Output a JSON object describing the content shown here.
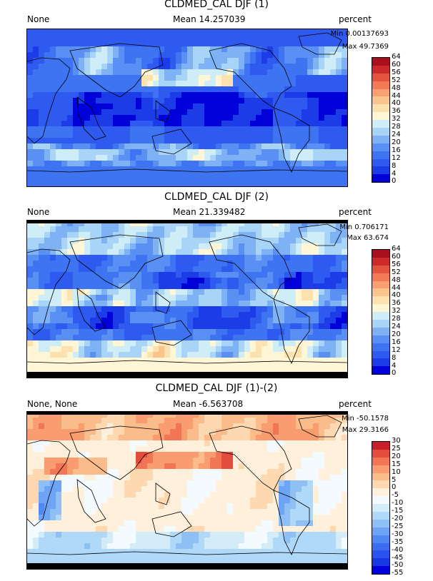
{
  "chart_data": [
    {
      "type": "heatmap",
      "title": "CLDMED_CAL DJF (1)",
      "left_label": "None",
      "mean_label": "Mean 14.257039",
      "units": "percent",
      "min_label": "Min 0.00137693",
      "max_label": "Max 49.7369",
      "colorbar_ticks": [
        "64",
        "60",
        "56",
        "52",
        "48",
        "44",
        "40",
        "36",
        "32",
        "28",
        "24",
        "20",
        "16",
        "12",
        "8",
        "4",
        "0"
      ],
      "colors": [
        "#0000d8",
        "#1c3ce8",
        "#2f5af0",
        "#3e74f2",
        "#5a90f4",
        "#7fb2f5",
        "#a8d4f7",
        "#cfedf7",
        "#fff6d6",
        "#fde2b0",
        "#fbc48c",
        "#f9a070",
        "#f27a55",
        "#e4533e",
        "#cc2a2a",
        "#a8101e"
      ],
      "projection": "cylindrical equidistant",
      "lat_range": [
        -90,
        90
      ],
      "lon_range": [
        0,
        360
      ],
      "value_range": [
        0,
        64
      ]
    },
    {
      "type": "heatmap",
      "title": "CLDMED_CAL DJF (2)",
      "left_label": "None",
      "mean_label": "Mean 21.339482",
      "units": "percent",
      "min_label": "Min 0.706171",
      "max_label": "Max 63.674",
      "colorbar_ticks": [
        "64",
        "60",
        "56",
        "52",
        "48",
        "44",
        "40",
        "36",
        "32",
        "28",
        "24",
        "20",
        "16",
        "12",
        "8",
        "4",
        "0"
      ],
      "colors": [
        "#0000d8",
        "#1c3ce8",
        "#2f5af0",
        "#3e74f2",
        "#5a90f4",
        "#7fb2f5",
        "#a8d4f7",
        "#cfedf7",
        "#fff6d6",
        "#fde2b0",
        "#fbc48c",
        "#f9a070",
        "#f27a55",
        "#e4533e",
        "#cc2a2a",
        "#a8101e"
      ],
      "projection": "cylindrical equidistant",
      "lat_range": [
        -90,
        90
      ],
      "lon_range": [
        0,
        360
      ],
      "value_range": [
        0,
        64
      ]
    },
    {
      "type": "heatmap",
      "title": "CLDMED_CAL DJF (1)-(2)",
      "left_label": "None, None",
      "mean_label": "Mean -6.563708",
      "units": "percent",
      "min_label": "Min -50.1578",
      "max_label": "Max 29.3166",
      "colorbar_ticks": [
        "30",
        "25",
        "20",
        "15",
        "10",
        "5",
        "0",
        "-5",
        "-10",
        "-15",
        "-20",
        "-25",
        "-30",
        "-35",
        "-40",
        "-45",
        "-50",
        "-55"
      ],
      "colors": [
        "#0000d8",
        "#1838e4",
        "#2a52ee",
        "#3c6cf2",
        "#5288f4",
        "#6ea4f5",
        "#8ec0f6",
        "#b0d8f8",
        "#d4ecf8",
        "#f4fbff",
        "#fff0dc",
        "#fdd8b0",
        "#fbbc8c",
        "#f99c70",
        "#f27656",
        "#e44c3e",
        "#c8202a"
      ],
      "projection": "cylindrical equidistant",
      "lat_range": [
        -90,
        90
      ],
      "lon_range": [
        0,
        360
      ],
      "value_range": [
        -55,
        30
      ]
    }
  ]
}
